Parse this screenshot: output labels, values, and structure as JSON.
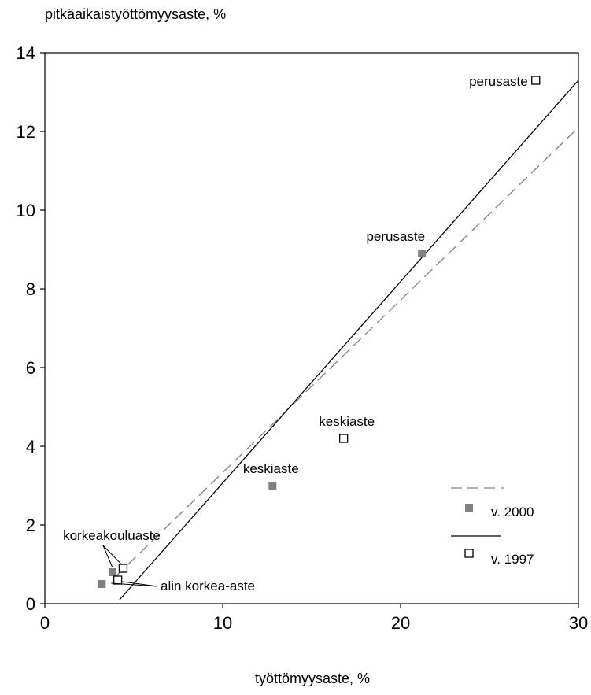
{
  "chart_data": {
    "type": "scatter",
    "title": "",
    "ylabel": "pitkäaikaistyöttömyysaste, %",
    "xlabel": "työttömyysaste, %",
    "xlim": [
      0,
      30
    ],
    "ylim": [
      0,
      14
    ],
    "x_ticks": [
      "0",
      "10",
      "20",
      "30"
    ],
    "y_ticks": [
      "0",
      "2",
      "4",
      "6",
      "8",
      "10",
      "12",
      "14"
    ],
    "grid": false,
    "legend_position": "bottom-right",
    "series": [
      {
        "name": "v. 2000",
        "marker": "filled-square",
        "color": "#808080",
        "line_style": "dashed",
        "points": [
          {
            "x": 3.2,
            "y": 0.5
          },
          {
            "x": 3.8,
            "y": 0.8
          },
          {
            "x": 12.8,
            "y": 3.0
          },
          {
            "x": 21.2,
            "y": 8.9
          }
        ],
        "trend": [
          [
            4.0,
            0.7
          ],
          [
            30.0,
            12.1
          ]
        ]
      },
      {
        "name": "v. 1997",
        "marker": "hollow-square",
        "color": "#000000",
        "line_style": "solid",
        "points": [
          {
            "x": 4.1,
            "y": 0.6
          },
          {
            "x": 4.4,
            "y": 0.9
          },
          {
            "x": 16.8,
            "y": 4.2
          },
          {
            "x": 27.6,
            "y": 13.3
          }
        ],
        "trend": [
          [
            4.2,
            0.1
          ],
          [
            30.0,
            13.3
          ]
        ]
      }
    ],
    "annotations": [
      {
        "text": "perusaste",
        "x": 27.6,
        "y": 13.3,
        "anchor": "end"
      },
      {
        "text": "perusaste",
        "x": 21.2,
        "y": 8.9,
        "anchor": "end"
      },
      {
        "text": "keskiaste",
        "x": 16.8,
        "y": 4.2,
        "anchor": "middle"
      },
      {
        "text": "keskiaste",
        "x": 12.8,
        "y": 3.0,
        "anchor": "middle"
      },
      {
        "text": "korkeakouluaste",
        "x": 3.8,
        "y": 0.8,
        "anchor": "middle"
      },
      {
        "text": "alin korkea-aste",
        "x": 4.1,
        "y": 0.6,
        "anchor": "start"
      }
    ]
  }
}
